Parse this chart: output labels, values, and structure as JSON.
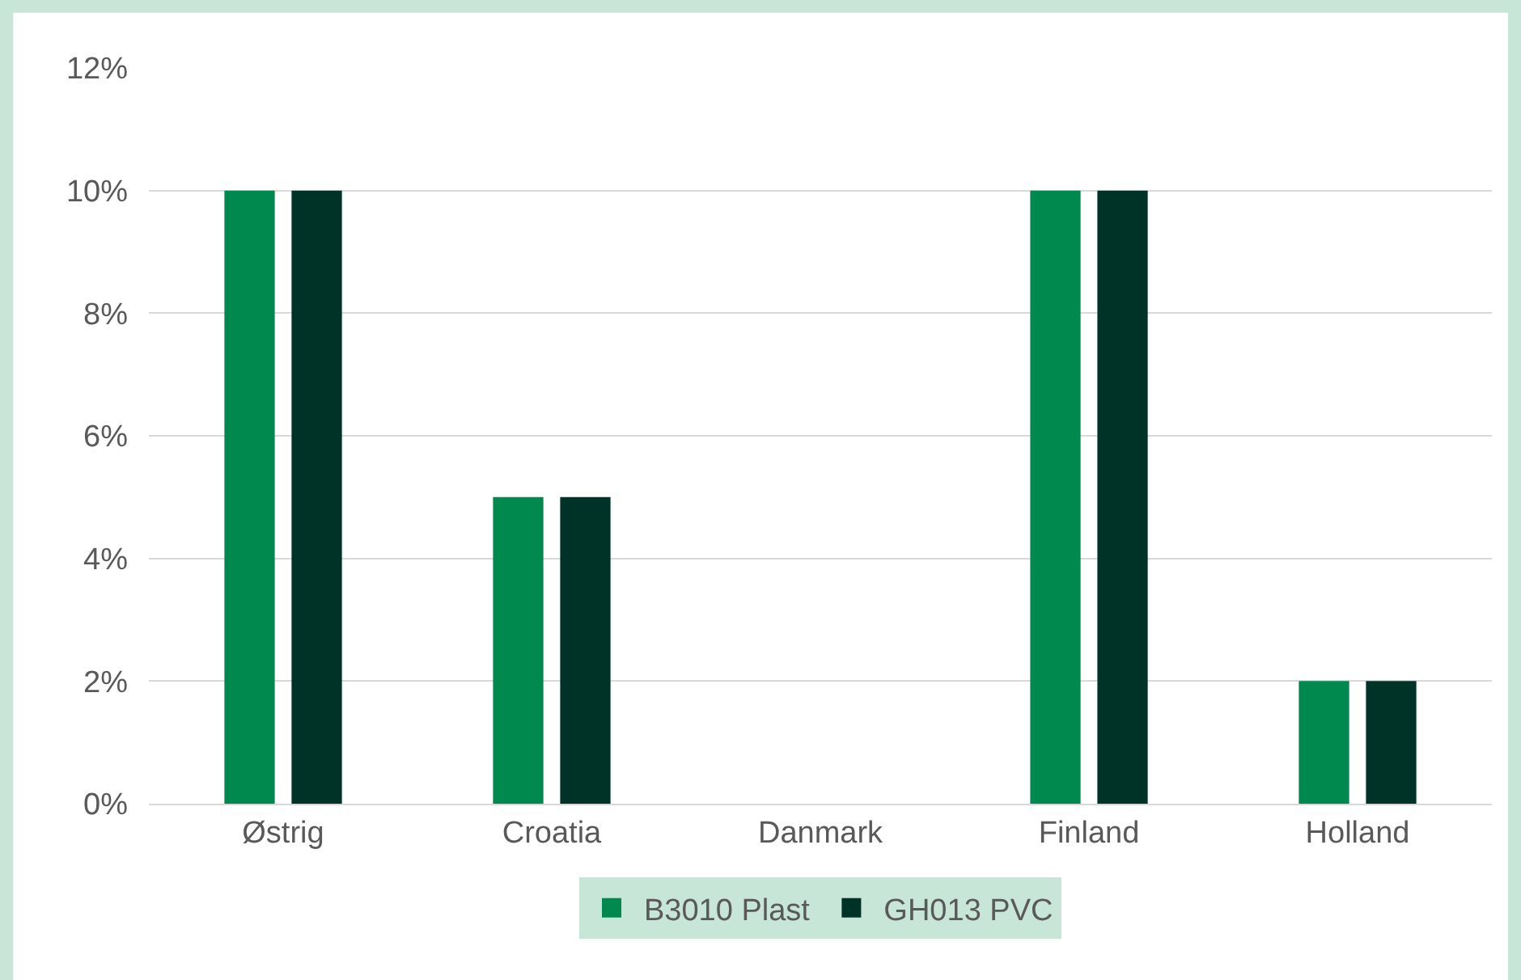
{
  "chart_data": {
    "type": "bar",
    "categories": [
      "Østrig",
      "Croatia",
      "Danmark",
      "Finland",
      "Holland"
    ],
    "series": [
      {
        "name": "B3010 Plast",
        "color": "#00894f",
        "values": [
          10,
          5,
          0,
          10,
          2
        ]
      },
      {
        "name": "GH013 PVC",
        "color": "#003327",
        "values": [
          10,
          5,
          0,
          10,
          2
        ]
      }
    ],
    "ylim": [
      0,
      12
    ],
    "yticks": [
      {
        "value": 0,
        "label": "0%"
      },
      {
        "value": 2,
        "label": "2%"
      },
      {
        "value": 4,
        "label": "4%"
      },
      {
        "value": 6,
        "label": "6%"
      },
      {
        "value": 8,
        "label": "8%"
      },
      {
        "value": 10,
        "label": "10%"
      },
      {
        "value": 12,
        "label": "12%"
      }
    ],
    "grid": "y",
    "legend": "bottom"
  }
}
